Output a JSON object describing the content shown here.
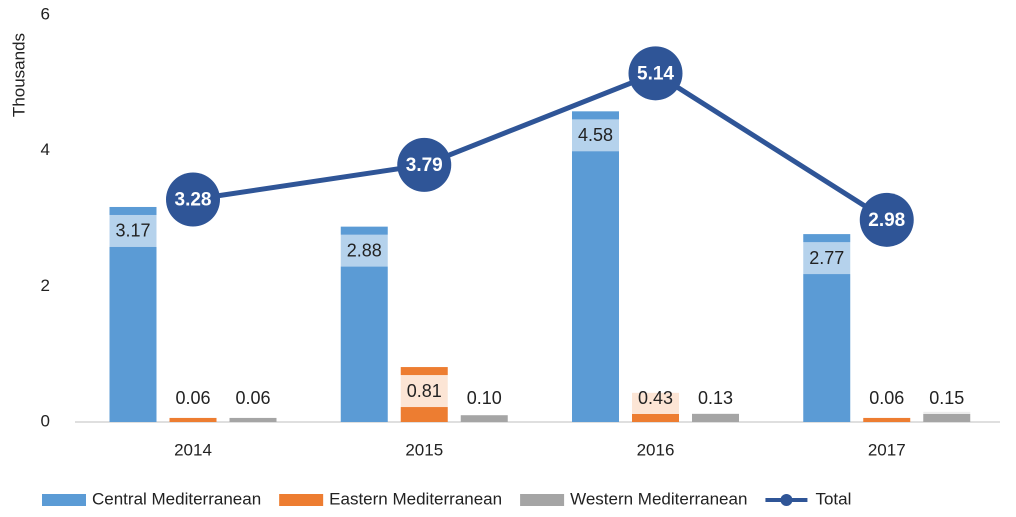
{
  "chart_data": {
    "type": "bar_line",
    "y_label": "Thousands",
    "categories": [
      "2014",
      "2015",
      "2016",
      "2017"
    ],
    "ylim": [
      0,
      6
    ],
    "yticks": [
      0,
      2,
      4,
      6
    ],
    "series": [
      {
        "name": "Central Mediterranean",
        "color": "#5b9bd5",
        "type": "bar",
        "values": [
          3.17,
          2.88,
          4.58,
          2.77
        ],
        "value_labels": [
          "3.17",
          "2.88",
          "4.58",
          "2.77"
        ]
      },
      {
        "name": "Eastern Mediterranean",
        "color": "#ed7d31",
        "type": "bar",
        "values": [
          0.06,
          0.81,
          0.43,
          0.06
        ],
        "value_labels": [
          "0.06",
          "0.81",
          "0.43",
          "0.06"
        ]
      },
      {
        "name": "Western Mediterranean",
        "color": "#a5a5a5",
        "type": "bar",
        "values": [
          0.06,
          0.1,
          0.13,
          0.15
        ],
        "value_labels": [
          "0.06",
          "0.10",
          "0.13",
          "0.15"
        ]
      },
      {
        "name": "Total",
        "color": "#2f5597",
        "type": "line",
        "values": [
          3.28,
          3.79,
          5.14,
          2.98
        ],
        "value_labels": [
          "3.28",
          "3.79",
          "5.14",
          "2.98"
        ]
      }
    ],
    "legend": "bottom"
  }
}
